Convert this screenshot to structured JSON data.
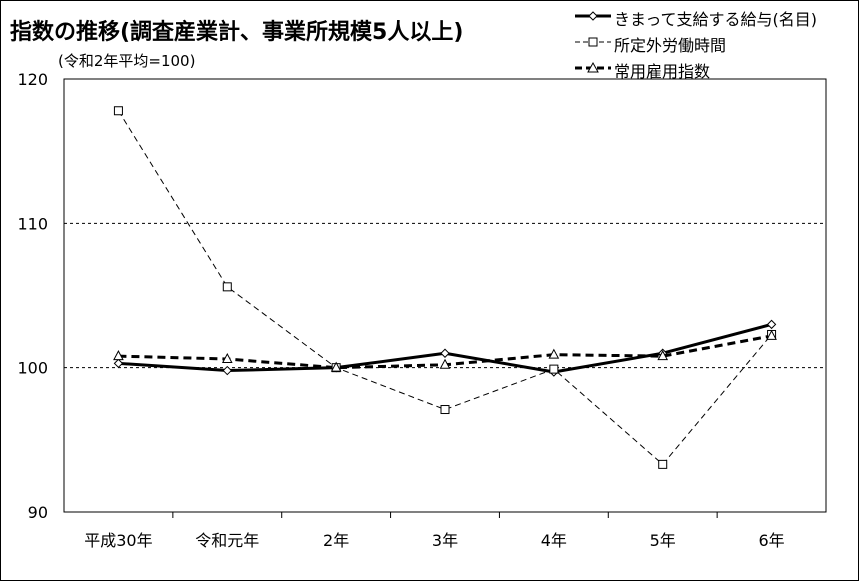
{
  "chart_data": {
    "type": "line",
    "title": "指数の推移(調査産業計、事業所規模5人以上)",
    "subtitle": "(令和2年平均=100)",
    "categories": [
      "平成30年",
      "令和元年",
      "2年",
      "3年",
      "4年",
      "5年",
      "6年"
    ],
    "ylim": [
      90,
      120
    ],
    "yticks": [
      90,
      100,
      110,
      120
    ],
    "grid": "dashed horizontal at 100 and 110",
    "legend_position": "top-right",
    "series": [
      {
        "name": "きまって支給する給与(名目)",
        "marker": "diamond",
        "style": "solid-thick",
        "values": [
          100.3,
          99.8,
          100.0,
          101.0,
          99.7,
          101.0,
          103.0
        ]
      },
      {
        "name": "所定外労働時間",
        "marker": "square",
        "style": "dashed-thin",
        "values": [
          117.8,
          105.6,
          100.0,
          97.1,
          99.9,
          93.3,
          102.3
        ]
      },
      {
        "name": "常用雇用指数",
        "marker": "triangle",
        "style": "dashed-thick",
        "values": [
          100.8,
          100.6,
          100.0,
          100.2,
          100.9,
          100.8,
          102.2
        ]
      }
    ]
  }
}
